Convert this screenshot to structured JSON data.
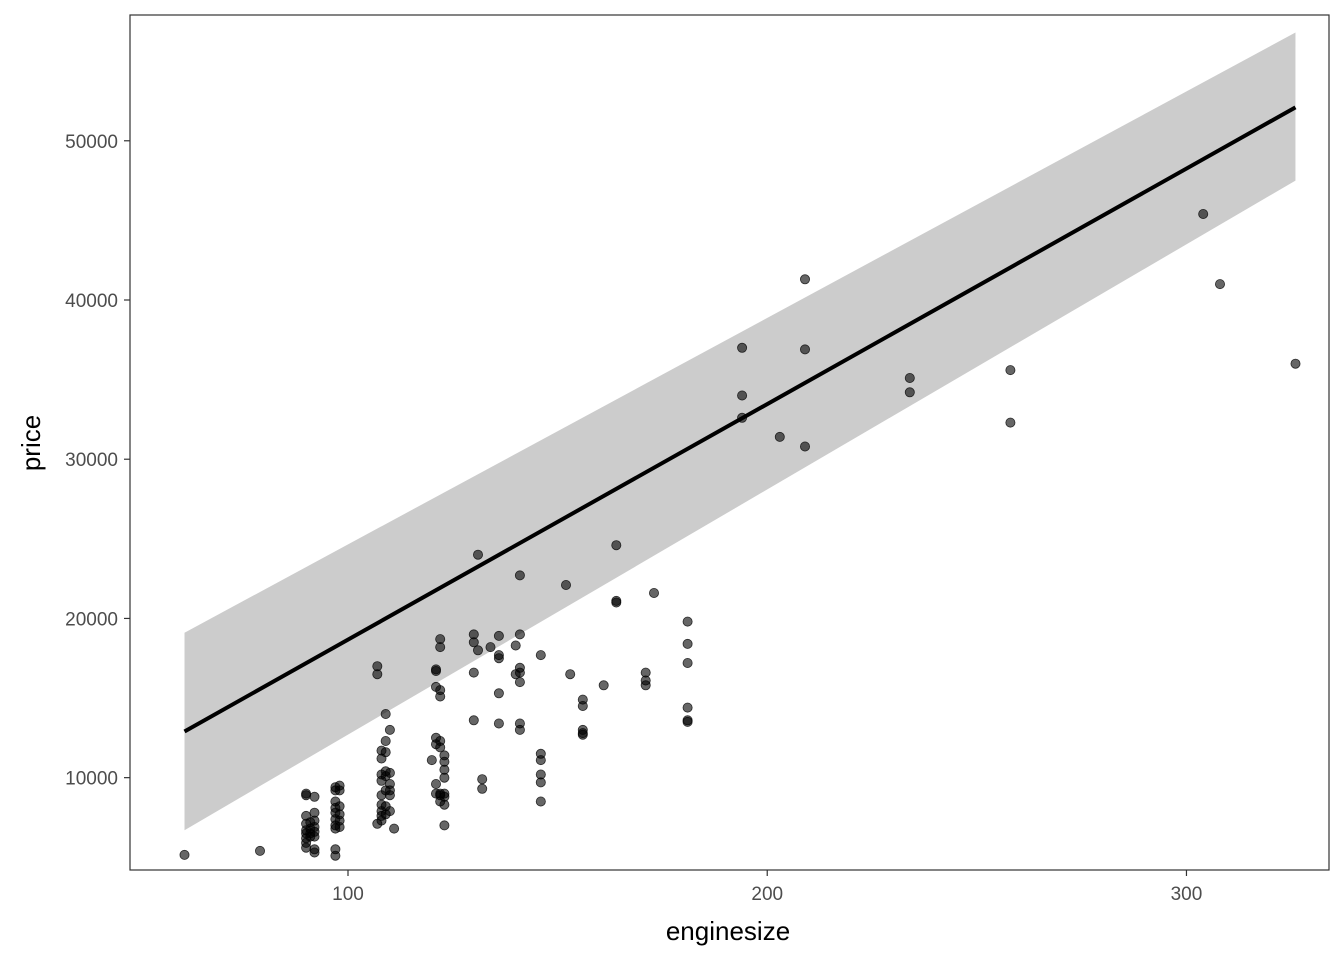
{
  "chart_data": {
    "type": "scatter",
    "title": "",
    "xlabel": "enginesize",
    "ylabel": "price",
    "xlim": [
      48,
      334
    ],
    "ylim": [
      4200,
      57900
    ],
    "x_ticks": [
      100,
      200,
      300
    ],
    "x_tick_labels": [
      "100",
      "200",
      "300"
    ],
    "y_ticks": [
      10000,
      20000,
      30000,
      40000,
      50000
    ],
    "y_tick_labels": [
      "10000",
      "20000",
      "30000",
      "40000",
      "50000"
    ],
    "grid": false,
    "legend": "none",
    "colors": {
      "points": "#000000",
      "point_opacity": 0.6,
      "fit_line": "#000000",
      "ribbon": "#cccccc",
      "axis_text": "#4d4d4d",
      "panel_border": "#333333"
    },
    "fit": {
      "method": "linear",
      "x": [
        61,
        326
      ],
      "y": [
        12900,
        52100
      ],
      "ci_lower": [
        6700,
        47500
      ],
      "ci_upper": [
        19100,
        56800
      ]
    },
    "points": [
      [
        61,
        5150
      ],
      [
        79,
        5400
      ],
      [
        90,
        9000
      ],
      [
        90,
        8900
      ],
      [
        90,
        7600
      ],
      [
        90,
        7100
      ],
      [
        90,
        6700
      ],
      [
        90,
        6500
      ],
      [
        90,
        6200
      ],
      [
        90,
        5900
      ],
      [
        90,
        5600
      ],
      [
        91,
        7200
      ],
      [
        91,
        6800
      ],
      [
        91,
        6500
      ],
      [
        91,
        6300
      ],
      [
        92,
        8800
      ],
      [
        92,
        7800
      ],
      [
        92,
        7300
      ],
      [
        92,
        6900
      ],
      [
        92,
        6600
      ],
      [
        92,
        6300
      ],
      [
        92,
        5500
      ],
      [
        92,
        5300
      ],
      [
        97,
        9400
      ],
      [
        97,
        9200
      ],
      [
        97,
        8500
      ],
      [
        97,
        8100
      ],
      [
        97,
        7800
      ],
      [
        97,
        7400
      ],
      [
        97,
        7000
      ],
      [
        97,
        6800
      ],
      [
        97,
        5500
      ],
      [
        97,
        5100
      ],
      [
        98,
        9500
      ],
      [
        98,
        9200
      ],
      [
        98,
        8200
      ],
      [
        98,
        7700
      ],
      [
        98,
        7300
      ],
      [
        98,
        6900
      ],
      [
        107,
        17000
      ],
      [
        107,
        16500
      ],
      [
        107,
        7100
      ],
      [
        108,
        11700
      ],
      [
        108,
        11200
      ],
      [
        108,
        10200
      ],
      [
        108,
        9800
      ],
      [
        108,
        8900
      ],
      [
        108,
        8300
      ],
      [
        108,
        7900
      ],
      [
        108,
        7600
      ],
      [
        108,
        7300
      ],
      [
        109,
        14000
      ],
      [
        109,
        12300
      ],
      [
        109,
        11600
      ],
      [
        109,
        10400
      ],
      [
        109,
        10100
      ],
      [
        109,
        9200
      ],
      [
        109,
        8200
      ],
      [
        109,
        7700
      ],
      [
        110,
        13000
      ],
      [
        110,
        10300
      ],
      [
        110,
        9600
      ],
      [
        110,
        9200
      ],
      [
        110,
        8900
      ],
      [
        110,
        7900
      ],
      [
        111,
        6800
      ],
      [
        120,
        11100
      ],
      [
        121,
        16800
      ],
      [
        121,
        16700
      ],
      [
        121,
        15700
      ],
      [
        121,
        12500
      ],
      [
        121,
        12100
      ],
      [
        121,
        9600
      ],
      [
        121,
        9000
      ],
      [
        122,
        18700
      ],
      [
        122,
        18200
      ],
      [
        122,
        15500
      ],
      [
        122,
        15100
      ],
      [
        122,
        12300
      ],
      [
        122,
        11900
      ],
      [
        122,
        9000
      ],
      [
        122,
        8900
      ],
      [
        122,
        8500
      ],
      [
        123,
        11400
      ],
      [
        123,
        11000
      ],
      [
        123,
        10500
      ],
      [
        123,
        10000
      ],
      [
        123,
        9000
      ],
      [
        123,
        8800
      ],
      [
        123,
        8300
      ],
      [
        123,
        7000
      ],
      [
        130,
        19000
      ],
      [
        130,
        18500
      ],
      [
        130,
        16600
      ],
      [
        130,
        13600
      ],
      [
        131,
        24000
      ],
      [
        131,
        18000
      ],
      [
        132,
        9900
      ],
      [
        132,
        9300
      ],
      [
        134,
        18200
      ],
      [
        136,
        18900
      ],
      [
        136,
        17700
      ],
      [
        136,
        17500
      ],
      [
        136,
        15300
      ],
      [
        136,
        13400
      ],
      [
        140,
        18300
      ],
      [
        140,
        16500
      ],
      [
        141,
        22700
      ],
      [
        141,
        19000
      ],
      [
        141,
        16900
      ],
      [
        141,
        16600
      ],
      [
        141,
        16000
      ],
      [
        141,
        13400
      ],
      [
        141,
        13000
      ],
      [
        146,
        17700
      ],
      [
        146,
        11500
      ],
      [
        146,
        11100
      ],
      [
        146,
        10200
      ],
      [
        146,
        9700
      ],
      [
        146,
        8500
      ],
      [
        152,
        22100
      ],
      [
        153,
        16500
      ],
      [
        156,
        14900
      ],
      [
        156,
        14500
      ],
      [
        156,
        13000
      ],
      [
        156,
        12800
      ],
      [
        156,
        12700
      ],
      [
        161,
        15800
      ],
      [
        164,
        24600
      ],
      [
        164,
        21100
      ],
      [
        164,
        21000
      ],
      [
        171,
        16600
      ],
      [
        171,
        16100
      ],
      [
        171,
        15800
      ],
      [
        173,
        21600
      ],
      [
        181,
        19800
      ],
      [
        181,
        18400
      ],
      [
        181,
        17200
      ],
      [
        181,
        14400
      ],
      [
        181,
        13600
      ],
      [
        181,
        13500
      ],
      [
        194,
        37000
      ],
      [
        194,
        34000
      ],
      [
        194,
        32600
      ],
      [
        203,
        31400
      ],
      [
        209,
        41300
      ],
      [
        209,
        36900
      ],
      [
        209,
        30800
      ],
      [
        234,
        35100
      ],
      [
        234,
        34200
      ],
      [
        258,
        35600
      ],
      [
        258,
        32300
      ],
      [
        304,
        45400
      ],
      [
        308,
        41000
      ],
      [
        326,
        36000
      ]
    ]
  }
}
